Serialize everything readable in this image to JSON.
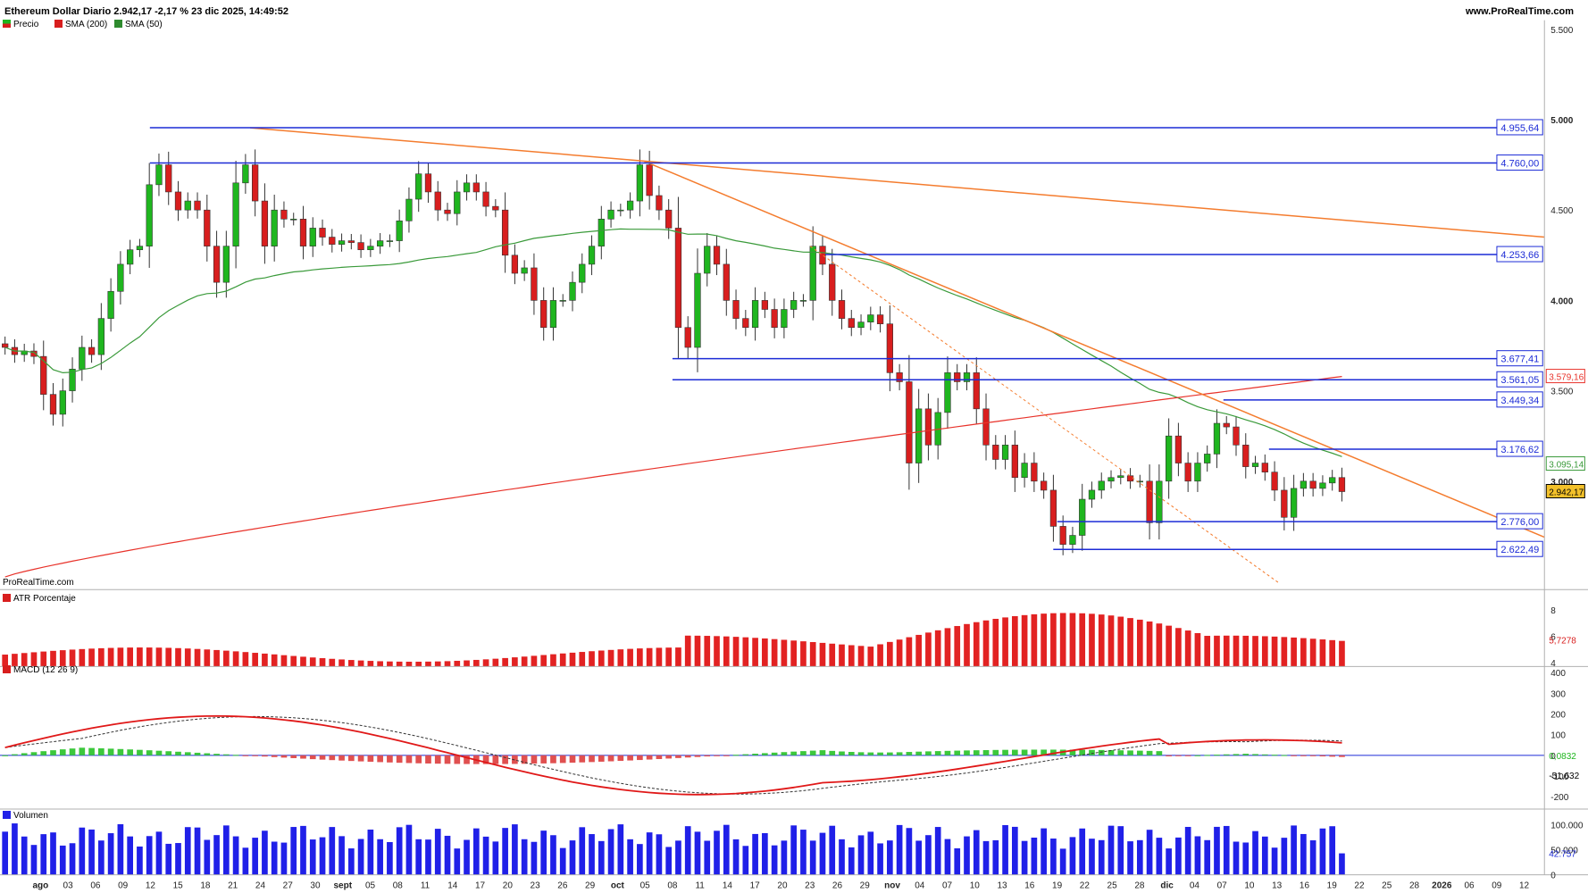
{
  "header": {
    "title": "Ethereum Dollar Diario 2.942,17 -2,17 % 23 dic 2025, 14:49:52",
    "site": "www.ProRealTime.com",
    "watermark": "ProRealTime.com"
  },
  "legends": {
    "price": [
      "Precio",
      "SMA (200)",
      "SMA (50)"
    ],
    "atr": "ATR Porcentaje",
    "macd": "MACD (12 26 9)",
    "volume": "Volumen"
  },
  "colors": {
    "up": "#1fb61f",
    "down": "#d81e1e",
    "sma200": "#e8322a",
    "sma50": "#3a9a3a",
    "trend": "#f47c2e",
    "level": "#1c2bd6",
    "volume": "#2020e8"
  },
  "chart_data": [
    {
      "type": "candlestick",
      "title": "Ethereum Dollar Diario",
      "last": "2.942,17",
      "change": "-2,17 %",
      "timestamp": "23 dic 2025, 14:49:52",
      "y_ticks": [
        "5.500",
        "5.000",
        "4.500",
        "4.000",
        "3.500",
        "3.000"
      ],
      "ylim": [
        2400,
        5550
      ],
      "x_ticks": [
        "ago",
        "03",
        "06",
        "09",
        "12",
        "15",
        "18",
        "21",
        "24",
        "27",
        "30",
        "sept",
        "05",
        "08",
        "11",
        "14",
        "17",
        "20",
        "23",
        "26",
        "29",
        "oct",
        "05",
        "08",
        "11",
        "14",
        "17",
        "20",
        "23",
        "26",
        "29",
        "nov",
        "04",
        "07",
        "10",
        "13",
        "16",
        "19",
        "22",
        "25",
        "28",
        "dic",
        "04",
        "07",
        "10",
        "13",
        "16",
        "19",
        "22",
        "25",
        "28",
        "2026",
        "06",
        "09",
        "12"
      ],
      "closes": [
        3740,
        3700,
        3720,
        3690,
        3480,
        3370,
        3500,
        3620,
        3740,
        3700,
        3900,
        4050,
        4200,
        4280,
        4300,
        4640,
        4750,
        4600,
        4500,
        4550,
        4500,
        4300,
        4100,
        4300,
        4650,
        4750,
        4550,
        4300,
        4500,
        4450,
        4450,
        4300,
        4400,
        4350,
        4310,
        4330,
        4320,
        4280,
        4300,
        4330,
        4330,
        4440,
        4560,
        4700,
        4600,
        4500,
        4480,
        4600,
        4650,
        4600,
        4520,
        4500,
        4250,
        4150,
        4180,
        4000,
        3850,
        4000,
        4000,
        4100,
        4200,
        4300,
        4450,
        4500,
        4500,
        4550,
        4750,
        4580,
        4500,
        4400,
        3850,
        3740,
        4150,
        4300,
        4200,
        4000,
        3900,
        3850,
        4000,
        3950,
        3850,
        3950,
        4000,
        4000,
        4300,
        4200,
        4000,
        3900,
        3850,
        3880,
        3920,
        3870,
        3600,
        3550,
        3100,
        3400,
        3200,
        3380,
        3600,
        3550,
        3600,
        3400,
        3200,
        3120,
        3200,
        3020,
        3100,
        3000,
        2950,
        2750,
        2650,
        2700,
        2900,
        2950,
        3000,
        3020,
        3030,
        3000,
        3000,
        2770,
        3000,
        3250,
        3100,
        3000,
        3100,
        3150,
        3320,
        3300,
        3200,
        3080,
        3100,
        3050,
        2950,
        2800,
        2960,
        3000,
        2960,
        2990,
        3020,
        2942.17
      ],
      "series": [
        {
          "name": "SMA (200)",
          "last": "3.579,16"
        },
        {
          "name": "SMA (50)",
          "last": "3.095,14"
        }
      ],
      "levels": [
        "4.955,64",
        "4.760,00",
        "4.253,66",
        "3.677,41",
        "3.561,05",
        "3.449,34",
        "3.176,62",
        "2.776,00",
        "2.622,49"
      ],
      "price_label": "2.942,17"
    },
    {
      "type": "bar",
      "title": "ATR Porcentaje",
      "y_ticks": [
        "8",
        "6",
        "4"
      ],
      "ylim": [
        3.7,
        9.3
      ],
      "last": "5,7278"
    },
    {
      "type": "line",
      "title": "MACD (12 26 9)",
      "y_ticks": [
        "400",
        "300",
        "200",
        "100",
        "0",
        "-100",
        "-200"
      ],
      "ylim": [
        -260,
        420
      ],
      "histogram_last": "0,0832",
      "macd_last": "-51,632"
    },
    {
      "type": "bar",
      "title": "Volumen",
      "y_ticks": [
        "100.000",
        "50.000",
        "0"
      ],
      "ylim": [
        0,
        125000
      ],
      "last": "42.757"
    }
  ]
}
